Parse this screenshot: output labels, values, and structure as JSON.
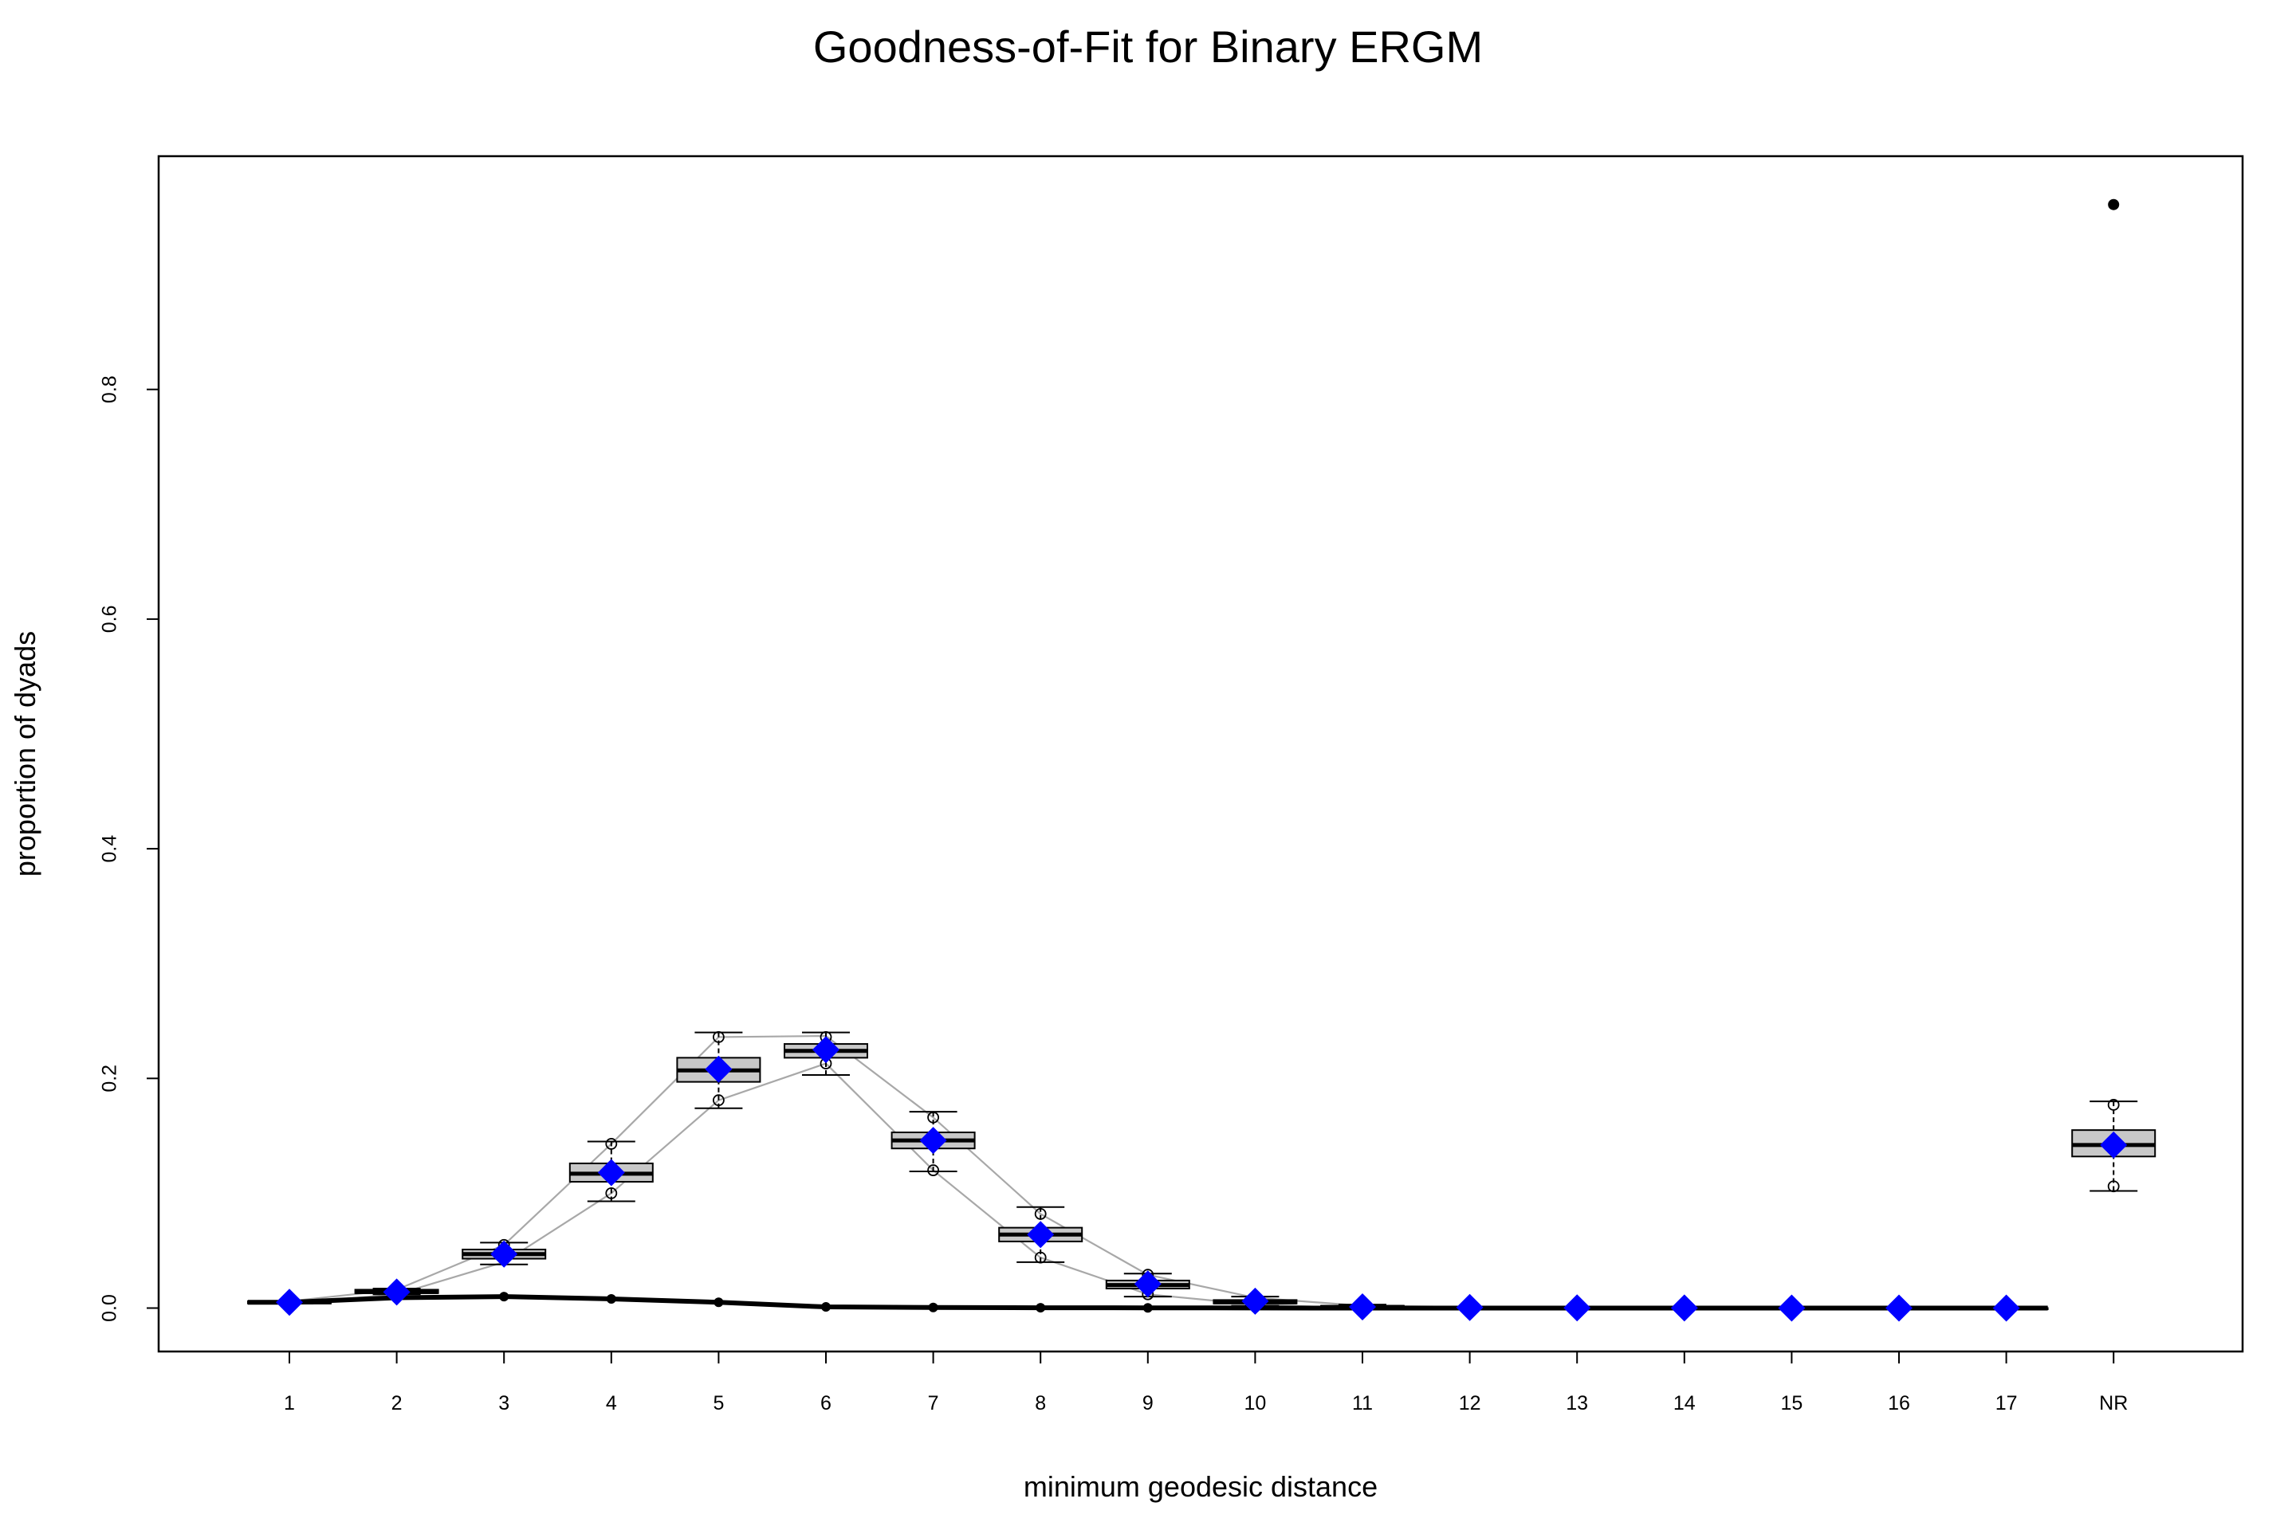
{
  "chart_data": {
    "type": "box",
    "title": "Goodness-of-Fit for Binary ERGM",
    "xlabel": "minimum geodesic distance",
    "ylabel": "proportion of dyads",
    "categories": [
      "1",
      "2",
      "3",
      "4",
      "5",
      "6",
      "7",
      "8",
      "9",
      "10",
      "11",
      "12",
      "13",
      "14",
      "15",
      "16",
      "17",
      "NR"
    ],
    "ylim": [
      -0.038,
      1.0
    ],
    "yticks": [
      0.0,
      0.2,
      0.4,
      0.6,
      0.8
    ],
    "ytick_labels": [
      "0.0",
      "0.2",
      "0.4",
      "0.6",
      "0.8"
    ],
    "grid": false,
    "legend": "none",
    "colors": {
      "box_fill": "#c8c8c8",
      "simulation_range_lines": "#a8a8a8",
      "observed": "#000000",
      "model_mean": "#0000ff"
    },
    "boxplots": [
      {
        "category": "1",
        "whisker_low": 0.004,
        "q1": 0.004,
        "median": 0.005,
        "q3": 0.006,
        "whisker_high": 0.006
      },
      {
        "category": "2",
        "whisker_low": 0.012,
        "q1": 0.013,
        "median": 0.014,
        "q3": 0.016,
        "whisker_high": 0.017
      },
      {
        "category": "3",
        "whisker_low": 0.038,
        "q1": 0.043,
        "median": 0.047,
        "q3": 0.051,
        "whisker_high": 0.057
      },
      {
        "category": "4",
        "whisker_low": 0.093,
        "q1": 0.11,
        "median": 0.117,
        "q3": 0.126,
        "whisker_high": 0.145
      },
      {
        "category": "5",
        "whisker_low": 0.174,
        "q1": 0.197,
        "median": 0.207,
        "q3": 0.218,
        "whisker_high": 0.24
      },
      {
        "category": "6",
        "whisker_low": 0.203,
        "q1": 0.218,
        "median": 0.224,
        "q3": 0.23,
        "whisker_high": 0.24
      },
      {
        "category": "7",
        "whisker_low": 0.119,
        "q1": 0.139,
        "median": 0.146,
        "q3": 0.153,
        "whisker_high": 0.171
      },
      {
        "category": "8",
        "whisker_low": 0.04,
        "q1": 0.058,
        "median": 0.064,
        "q3": 0.07,
        "whisker_high": 0.088
      },
      {
        "category": "9",
        "whisker_low": 0.01,
        "q1": 0.017,
        "median": 0.02,
        "q3": 0.024,
        "whisker_high": 0.03
      },
      {
        "category": "10",
        "whisker_low": 0.002,
        "q1": 0.004,
        "median": 0.005,
        "q3": 0.007,
        "whisker_high": 0.01
      },
      {
        "category": "11",
        "whisker_low": 0.0,
        "q1": 0.001,
        "median": 0.001,
        "q3": 0.002,
        "whisker_high": 0.003
      },
      {
        "category": "12",
        "whisker_low": 0.0,
        "q1": 0.0,
        "median": 0.0,
        "q3": 0.001,
        "whisker_high": 0.001
      },
      {
        "category": "13",
        "whisker_low": 0.0,
        "q1": 0.0,
        "median": 0.0,
        "q3": 0.0,
        "whisker_high": 0.0
      },
      {
        "category": "14",
        "whisker_low": 0.0,
        "q1": 0.0,
        "median": 0.0,
        "q3": 0.0,
        "whisker_high": 0.0
      },
      {
        "category": "15",
        "whisker_low": 0.0,
        "q1": 0.0,
        "median": 0.0,
        "q3": 0.0,
        "whisker_high": 0.0
      },
      {
        "category": "16",
        "whisker_low": 0.0,
        "q1": 0.0,
        "median": 0.0,
        "q3": 0.0,
        "whisker_high": 0.0
      },
      {
        "category": "17",
        "whisker_low": 0.0,
        "q1": 0.0,
        "median": 0.0,
        "q3": 0.0,
        "whisker_high": 0.0
      },
      {
        "category": "NR",
        "whisker_low": 0.102,
        "q1": 0.132,
        "median": 0.142,
        "q3": 0.155,
        "whisker_high": 0.18
      }
    ],
    "outliers": [
      {
        "category": "3",
        "value": 0.055
      },
      {
        "category": "4",
        "value": 0.143
      },
      {
        "category": "4",
        "value": 0.1
      },
      {
        "category": "5",
        "value": 0.236
      },
      {
        "category": "5",
        "value": 0.181
      },
      {
        "category": "6",
        "value": 0.236
      },
      {
        "category": "6",
        "value": 0.213
      },
      {
        "category": "7",
        "value": 0.166
      },
      {
        "category": "7",
        "value": 0.12
      },
      {
        "category": "8",
        "value": 0.082
      },
      {
        "category": "8",
        "value": 0.044
      },
      {
        "category": "9",
        "value": 0.029
      },
      {
        "category": "9",
        "value": 0.012
      },
      {
        "category": "NR",
        "value": 0.177
      },
      {
        "category": "NR",
        "value": 0.106
      }
    ],
    "series": [
      {
        "role": "simulation_upper",
        "categories": [
          "1",
          "2",
          "3",
          "4",
          "5",
          "6",
          "7",
          "8",
          "9",
          "10",
          "11",
          "12",
          "13",
          "14",
          "15",
          "16",
          "17"
        ],
        "values": [
          0.006,
          0.016,
          0.055,
          0.143,
          0.236,
          0.237,
          0.166,
          0.082,
          0.029,
          0.009,
          0.002,
          0.001,
          0.0,
          0.0,
          0.0,
          0.0,
          0.0
        ]
      },
      {
        "role": "simulation_lower",
        "categories": [
          "1",
          "2",
          "3",
          "4",
          "5",
          "6",
          "7",
          "8",
          "9",
          "10",
          "11",
          "12",
          "13",
          "14",
          "15",
          "16",
          "17"
        ],
        "values": [
          0.004,
          0.012,
          0.04,
          0.1,
          0.181,
          0.213,
          0.12,
          0.044,
          0.012,
          0.003,
          0.0,
          0.0,
          0.0,
          0.0,
          0.0,
          0.0,
          0.0
        ]
      },
      {
        "role": "observed",
        "categories": [
          "1",
          "2",
          "3",
          "4",
          "5",
          "6",
          "7",
          "8",
          "9",
          "10",
          "11",
          "12",
          "13",
          "14",
          "15",
          "16",
          "17"
        ],
        "values": [
          0.005,
          0.009,
          0.01,
          0.008,
          0.005,
          0.001,
          0.0005,
          0.0003,
          0.0002,
          0.0001,
          0.0,
          0.0,
          0.0,
          0.0,
          0.0,
          0.0,
          0.0
        ],
        "extra_point": {
          "category": "NR",
          "value": 0.961
        }
      },
      {
        "role": "model_mean",
        "categories": [
          "1",
          "2",
          "3",
          "4",
          "5",
          "6",
          "7",
          "8",
          "9",
          "10",
          "11",
          "12",
          "13",
          "14",
          "15",
          "16",
          "17",
          "NR"
        ],
        "values": [
          0.005,
          0.014,
          0.047,
          0.118,
          0.208,
          0.225,
          0.146,
          0.064,
          0.021,
          0.006,
          0.001,
          0.0005,
          0.0002,
          0.0001,
          0.0,
          0.0,
          0.0,
          0.142
        ]
      }
    ]
  }
}
